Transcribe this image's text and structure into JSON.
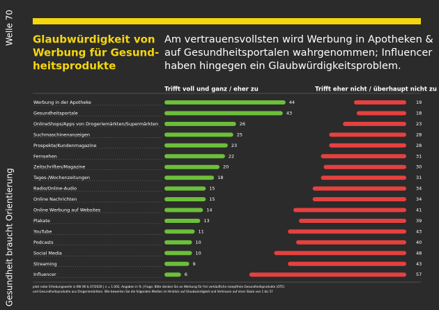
{
  "chart_data": {
    "type": "diverging-bar",
    "side_labels": [
      "Welle 70",
      "Gesundheit braucht Orientierung"
    ],
    "title": [
      "Glaubwürdigkeit von",
      "Werbung für Gesund-",
      "heitsprodukte"
    ],
    "subtitle": [
      "Am vertrauensvollsten wird Werbung in Apotheken &",
      "auf Gesundheitsportalen wahrgenommen; Influencer",
      "haben hingegen ein Glaubwürdigkeitsproblem."
    ],
    "categories": [
      "Werbung in der Apotheke",
      "Gesundheitsportale",
      "OnlineShops/Apps von Drogeriemärkten/Supermärkten",
      "Suchmaschinenanzeigen",
      "Prospekte/Kundenmagazine",
      "Fernsehen",
      "Zeitschriften/Magazine",
      "Tages-/Wochenzeitungen",
      "Radio/Online-Audio",
      "Online Nachrichten",
      "Online Werbung auf Websites",
      "Plakate",
      "YouTube",
      "Podcasts",
      "Social Media",
      "Streaming",
      "Influencer"
    ],
    "series": [
      {
        "name": "Trifft voll und ganz / eher zu",
        "color": "#6cbf3a",
        "values": [
          44,
          43,
          26,
          25,
          23,
          22,
          20,
          18,
          15,
          15,
          14,
          13,
          11,
          10,
          10,
          9,
          6
        ]
      },
      {
        "name": "Trifft eher nicht / überhaupt nicht zu",
        "color": "#e5413f",
        "values": [
          19,
          18,
          23,
          28,
          28,
          31,
          30,
          31,
          34,
          34,
          41,
          39,
          43,
          40,
          48,
          43,
          57
        ]
      }
    ],
    "footnote": [
      "pilot radar Erhebungswelle in KW 06 & 07/2026 | n = 1.002, Angaben in % | Frage: Bitte denken Sie an Werbung für frei verkäufliche rezeptfreie Gesundheitsprodukte (OTC)",
      "und Gesundheitsprodukte aus Drogeriemärkten. Wie bewerten Sie die folgenden Medien im Hinblick auf Glaubwürdigkeit und Vertrauen auf einer Skala von 1 bis 5?"
    ]
  }
}
